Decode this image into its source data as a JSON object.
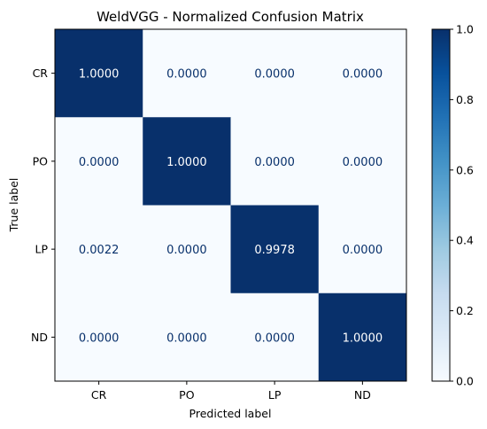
{
  "chart_data": {
    "type": "heatmap",
    "title": "WeldVGG - Normalized Confusion Matrix",
    "xlabel": "Predicted label",
    "ylabel": "True label",
    "x_categories": [
      "CR",
      "PO",
      "LP",
      "ND"
    ],
    "y_categories": [
      "CR",
      "PO",
      "LP",
      "ND"
    ],
    "values": [
      [
        1.0,
        0.0,
        0.0,
        0.0
      ],
      [
        0.0,
        1.0,
        0.0,
        0.0
      ],
      [
        0.0022,
        0.0,
        0.9978,
        0.0
      ],
      [
        0.0,
        0.0,
        0.0,
        1.0
      ]
    ],
    "cell_labels": [
      [
        "1.0000",
        "0.0000",
        "0.0000",
        "0.0000"
      ],
      [
        "0.0000",
        "1.0000",
        "0.0000",
        "0.0000"
      ],
      [
        "0.0022",
        "0.0000",
        "0.9978",
        "0.0000"
      ],
      [
        "0.0000",
        "0.0000",
        "0.0000",
        "1.0000"
      ]
    ],
    "colorbar": {
      "range": [
        0.0,
        1.0
      ],
      "ticks": [
        "0.0",
        "0.2",
        "0.4",
        "0.6",
        "0.8",
        "1.0"
      ],
      "colormap": "Blues",
      "low_color": "#f7fbff",
      "high_color": "#08306b"
    },
    "text_colors": {
      "dark": "#08306b",
      "light": "#ffffff"
    },
    "grid": false
  }
}
